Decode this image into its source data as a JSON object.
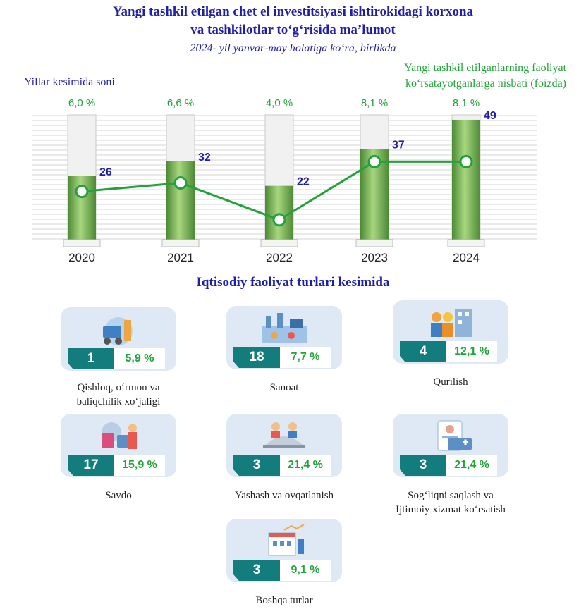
{
  "header": {
    "title_line1": "Yangi tashkil etilgan chet el investitsiyasi ishtirokidagi korxona",
    "title_line2": "va tashkilotlar to‘g‘risida ma’lumot",
    "subtitle": "2024- yil yanvar-may holatiga ko‘ra, birlikda"
  },
  "legend": {
    "left": "Yillar kesimida soni",
    "right_line1": "Yangi tashkil etilganlarning faoliyat",
    "right_line2": "ko‘rsatayotganlarga nisbati (foizda)"
  },
  "colors": {
    "title": "#1f1fa8",
    "green": "#22a33a",
    "teal": "#137d7e",
    "bar": "#6aa84f",
    "card": "#dfe9f5"
  },
  "chart_data": {
    "type": "bar",
    "categories": [
      "2020",
      "2021",
      "2022",
      "2023",
      "2024"
    ],
    "series": [
      {
        "name": "Yillar kesimida soni",
        "type": "bar",
        "values": [
          26,
          32,
          22,
          37,
          49
        ]
      },
      {
        "name": "Yangi tashkil etilganlarning faoliyat ko‘rsatayotganlarga nisbati (foizda)",
        "type": "line",
        "values": [
          6.0,
          6.6,
          4.0,
          8.1,
          8.1
        ]
      }
    ],
    "value_labels": [
      "26",
      "32",
      "22",
      "37",
      "49"
    ],
    "pct_labels": [
      "6,0 %",
      "6,6 %",
      "4,0 %",
      "8,1 %",
      "8,1 %"
    ],
    "grid": true
  },
  "sectors": {
    "title": "Iqtisodiy faoliyat turlari kesimida",
    "items": [
      {
        "count": "1",
        "pct": "5,9 %",
        "line1": "Qishloq, o‘rmon va",
        "line2": "baliqchilik xo‘jaligi",
        "icon": "farming-icon"
      },
      {
        "count": "18",
        "pct": "7,7 %",
        "line1": "Sanoat",
        "line2": "",
        "icon": "factory-icon"
      },
      {
        "count": "4",
        "pct": "12,1 %",
        "line1": "Qurilish",
        "line2": "",
        "icon": "construction-icon"
      },
      {
        "count": "17",
        "pct": "15,9 %",
        "line1": "Savdo",
        "line2": "",
        "icon": "shopping-icon"
      },
      {
        "count": "3",
        "pct": "21,4 %",
        "line1": "Yashash va ovqatlanish",
        "line2": "",
        "icon": "food-service-icon"
      },
      {
        "count": "3",
        "pct": "21,4 %",
        "line1": "Sog‘liqni saqlash va",
        "line2": "Ijtimoiy xizmat ko‘rsatish",
        "icon": "healthcare-icon"
      },
      {
        "count": "3",
        "pct": "9,1 %",
        "line1": "Boshqa turlar",
        "line2": "",
        "icon": "other-services-icon"
      }
    ]
  }
}
